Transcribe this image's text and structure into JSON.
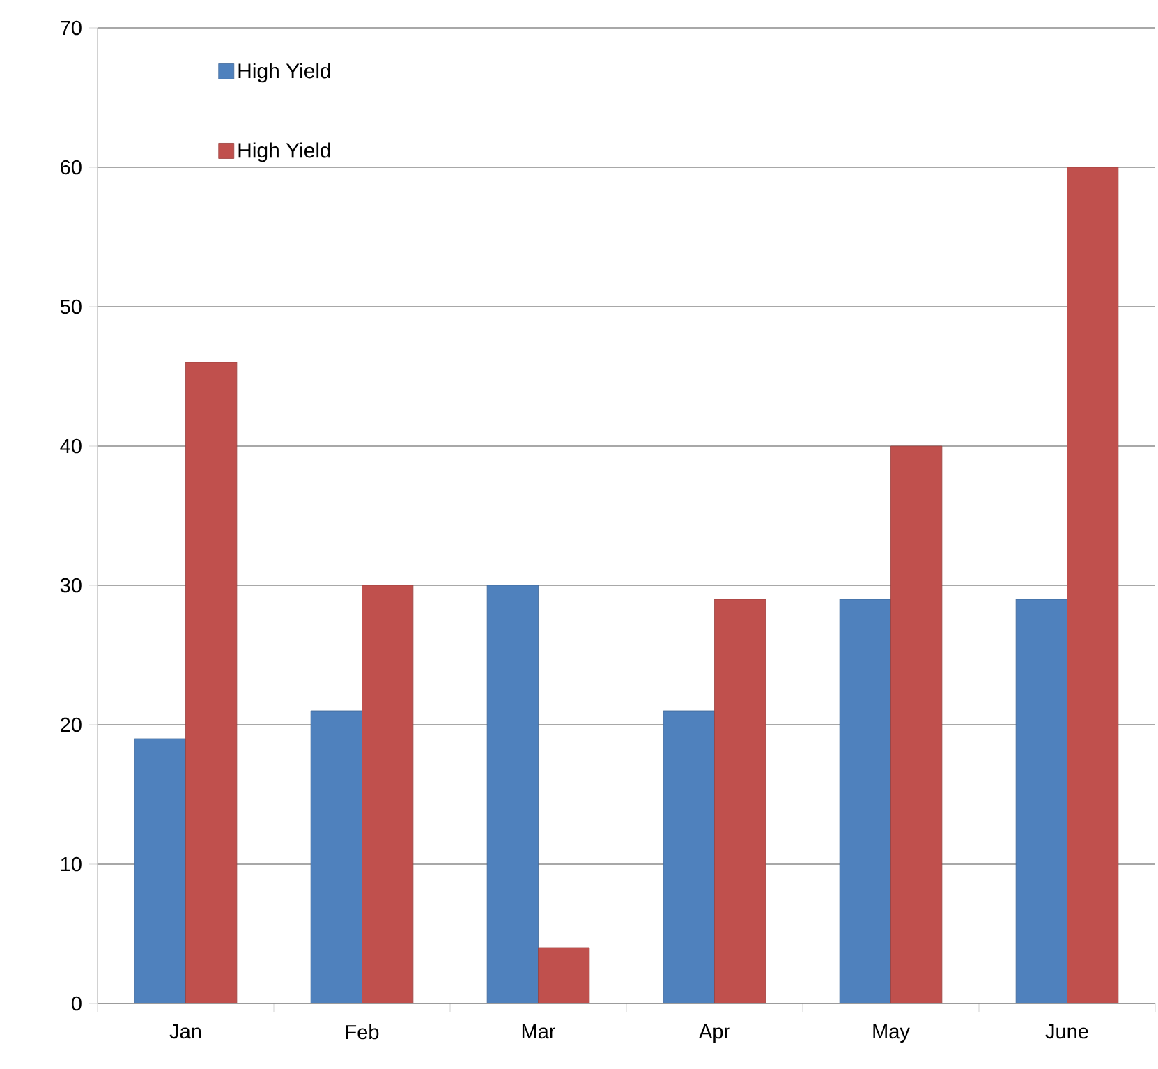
{
  "chart_data": {
    "type": "bar",
    "categories": [
      "Jan",
      "Feb",
      "Mar",
      "Apr",
      "May",
      "June"
    ],
    "series": [
      {
        "name": "High Yield",
        "color": "#4f81bd",
        "values": [
          19,
          21,
          30,
          21,
          29,
          29
        ]
      },
      {
        "name": "High Yield",
        "color": "#c0504d",
        "values": [
          46,
          30,
          4,
          29,
          40,
          60
        ]
      }
    ],
    "ylim": [
      0,
      70
    ],
    "yticks": [
      0,
      10,
      20,
      30,
      40,
      50,
      60,
      70
    ],
    "grid": "y",
    "legend": "top left"
  }
}
